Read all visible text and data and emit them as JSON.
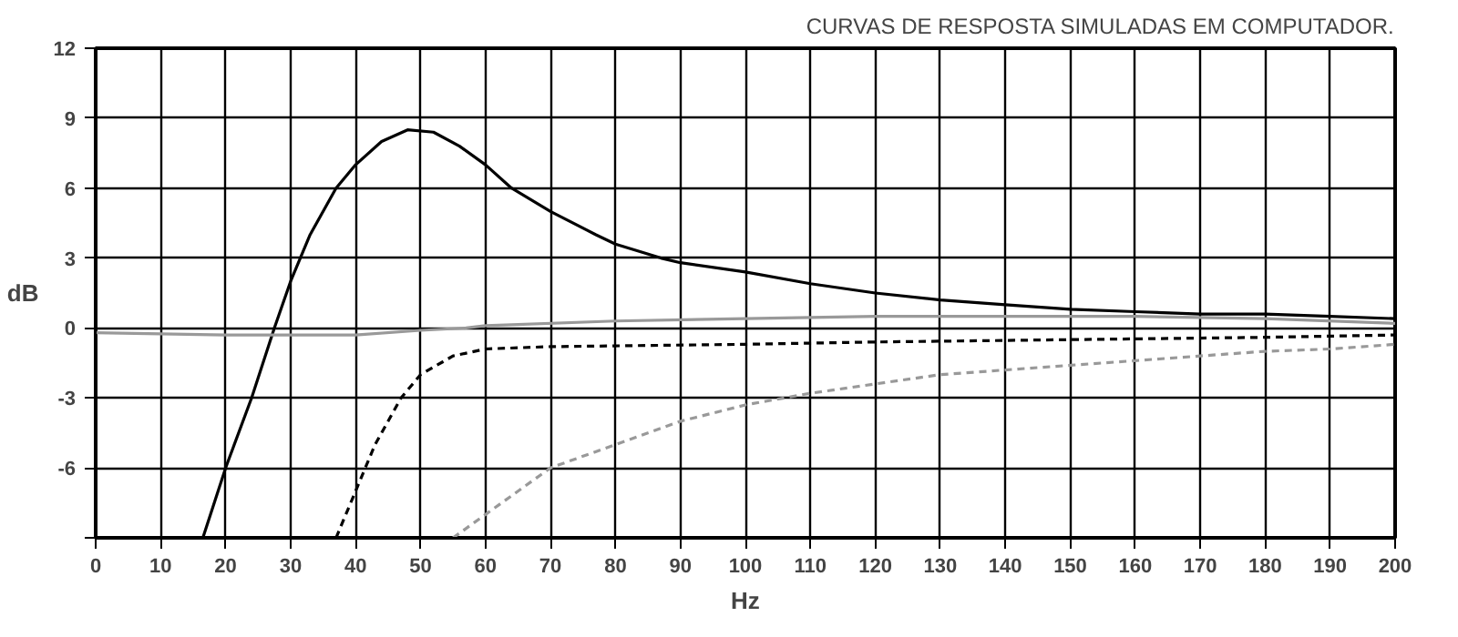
{
  "chart_data": {
    "type": "line",
    "title": "CURVAS DE RESPOSTA SIMULADAS EM COMPUTADOR.",
    "xlabel": "Hz",
    "ylabel": "dB",
    "xlim": [
      0,
      200
    ],
    "xticks": [
      0,
      10,
      20,
      30,
      40,
      50,
      60,
      70,
      80,
      90,
      100,
      110,
      120,
      130,
      140,
      150,
      160,
      170,
      180,
      190,
      200
    ],
    "ylim": [
      -9,
      12
    ],
    "yticks": [
      {
        "value": -9,
        "label": null
      },
      -6,
      -3,
      0,
      3,
      6,
      9,
      12
    ],
    "grid": true,
    "marker": "none",
    "series": [
      {
        "color": "#000000",
        "line_style": "solid",
        "x": [
          16.5,
          20,
          24,
          27.5,
          30,
          33,
          37,
          40,
          44,
          48,
          52,
          56,
          60,
          64,
          70,
          77,
          80,
          87,
          90,
          100,
          110,
          120,
          130,
          140,
          150,
          160,
          170,
          180,
          190,
          200
        ],
        "values": [
          -9,
          -6,
          -3,
          0,
          2,
          4,
          6,
          7,
          8,
          8.5,
          8.4,
          7.8,
          7,
          6,
          5,
          4,
          3.6,
          3,
          2.8,
          2.4,
          1.9,
          1.5,
          1.2,
          1,
          0.8,
          0.7,
          0.6,
          0.6,
          0.5,
          0.4
        ]
      },
      {
        "color": "#999999",
        "line_style": "solid",
        "x": [
          0,
          20,
          40,
          50,
          57,
          60,
          80,
          100,
          120,
          140,
          160,
          180,
          200
        ],
        "values": [
          -0.2,
          -0.3,
          -0.3,
          -0.1,
          0,
          0.1,
          0.3,
          0.4,
          0.5,
          0.5,
          0.5,
          0.4,
          0.2
        ]
      },
      {
        "color": "#000000",
        "line_style": "dashed",
        "x": [
          37,
          40,
          43,
          47,
          50,
          55,
          60,
          70,
          100,
          120,
          150,
          180,
          200
        ],
        "values": [
          -9,
          -7,
          -5,
          -3,
          -2,
          -1.2,
          -0.9,
          -0.8,
          -0.7,
          -0.6,
          -0.5,
          -0.4,
          -0.3
        ]
      },
      {
        "color": "#999999",
        "line_style": "dashed",
        "x": [
          55,
          60,
          70,
          80,
          90,
          100,
          110,
          120,
          130,
          140,
          150,
          160,
          170,
          180,
          190,
          200
        ],
        "values": [
          -9,
          -8,
          -6,
          -5,
          -4,
          -3.3,
          -2.8,
          -2.4,
          -2,
          -1.8,
          -1.6,
          -1.4,
          -1.2,
          -1,
          -0.9,
          -0.7
        ]
      }
    ]
  }
}
